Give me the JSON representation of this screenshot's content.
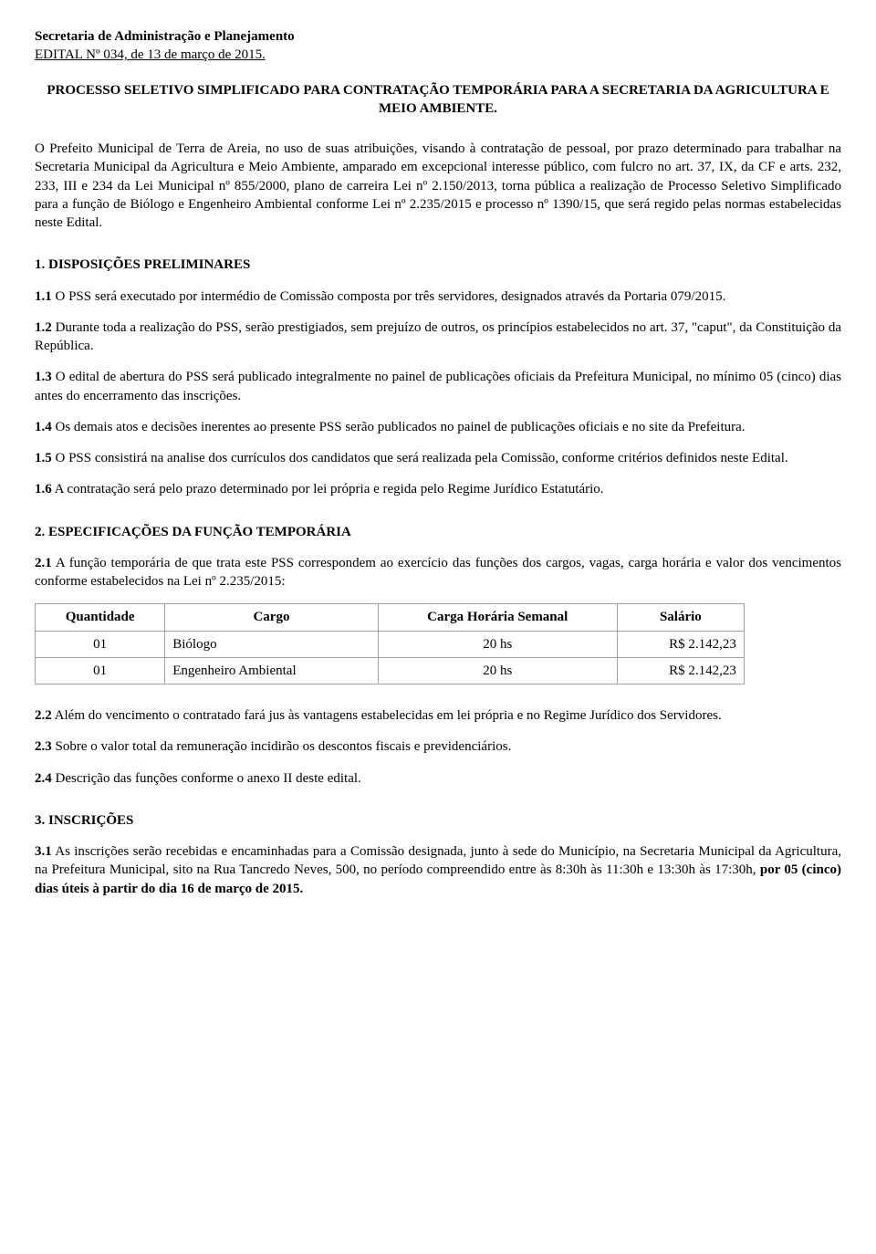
{
  "header": {
    "title": "Secretaria de Administração e Planejamento",
    "subtitle": "EDITAL Nº 034, de 13 de março de 2015."
  },
  "proc_title": "PROCESSO SELETIVO SIMPLIFICADO PARA CONTRATAÇÃO TEMPORÁRIA PARA A SECRETARIA DA AGRICULTURA E MEIO AMBIENTE.",
  "intro": "O Prefeito Municipal de Terra de Areia, no uso de suas atribuições, visando à contratação de pessoal, por prazo determinado para trabalhar na Secretaria Municipal da Agricultura e Meio Ambiente, amparado em excepcional interesse público, com fulcro no art. 37, IX, da CF e arts. 232, 233, III e 234 da Lei Municipal nº 855/2000, plano de carreira Lei nº 2.150/2013, torna pública a realização de Processo Seletivo Simplificado para a função de Biólogo e Engenheiro Ambiental conforme Lei nº 2.235/2015 e processo nº 1390/15, que será regido pelas normas estabelecidas neste Edital.",
  "sec1": {
    "title": "1. DISPOSIÇÕES PRELIMINARES",
    "c1": {
      "num": "1.1",
      "text": " O PSS será executado por intermédio de Comissão composta por três servidores, designados através da Portaria 079/2015."
    },
    "c2": {
      "num": "1.2",
      "text": " Durante toda a realização do PSS, serão prestigiados, sem prejuízo de outros, os princípios estabelecidos no art. 37, \"caput\", da Constituição da República."
    },
    "c3": {
      "num": "1.3",
      "text": " O edital de abertura do PSS será publicado integralmente no painel de publicações oficiais da Prefeitura Municipal, no mínimo 05 (cinco) dias antes do encerramento das inscrições."
    },
    "c4": {
      "num": "1.4",
      "text": " Os demais atos e decisões inerentes ao presente PSS serão publicados no painel de publicações oficiais e no site da Prefeitura."
    },
    "c5": {
      "num": "1.5",
      "text": " O PSS consistirá na analise dos currículos dos candidatos que será realizada pela Comissão, conforme critérios definidos neste Edital."
    },
    "c6": {
      "num": "1.6",
      "text": " A contratação será pelo prazo determinado por lei própria e regida pelo Regime Jurídico Estatutário."
    }
  },
  "sec2": {
    "title": "2. ESPECIFICAÇÕES DA FUNÇÃO TEMPORÁRIA",
    "c1": {
      "num": "2.1",
      "text": " A função temporária de que trata este PSS correspondem ao exercício das funções dos cargos, vagas, carga horária e valor dos vencimentos conforme estabelecidos na Lei nº 2.235/2015:"
    },
    "table": {
      "columns": [
        "Quantidade",
        "Cargo",
        "Carga Horária Semanal",
        "Salário"
      ],
      "rows": [
        [
          "01",
          "Biólogo",
          "20 hs",
          "R$ 2.142,23"
        ],
        [
          "01",
          "Engenheiro Ambiental",
          "20 hs",
          "R$ 2.142,23"
        ]
      ]
    },
    "c2": {
      "num": "2.2",
      "text": " Além do vencimento o contratado fará jus às vantagens estabelecidas em lei própria e no Regime Jurídico dos Servidores."
    },
    "c3": {
      "num": "2.3",
      "text": " Sobre o valor total da remuneração incidirão os descontos fiscais e previdenciários."
    },
    "c4": {
      "num": "2.4",
      "text": " Descrição das funções conforme o anexo II deste edital."
    }
  },
  "sec3": {
    "title": "3. INSCRIÇÕES",
    "c1": {
      "num": "3.1",
      "text_before": " As inscrições serão recebidas e encaminhadas para a Comissão designada, junto à sede do Município, na Secretaria Municipal da Agricultura, na Prefeitura Municipal, sito na Rua Tancredo Neves, 500, no período compreendido entre às 8:30h às 11:30h e 13:30h às 17:30h, ",
      "bold": "por 05 (cinco) dias úteis à partir do dia 16 de março de 2015."
    }
  }
}
